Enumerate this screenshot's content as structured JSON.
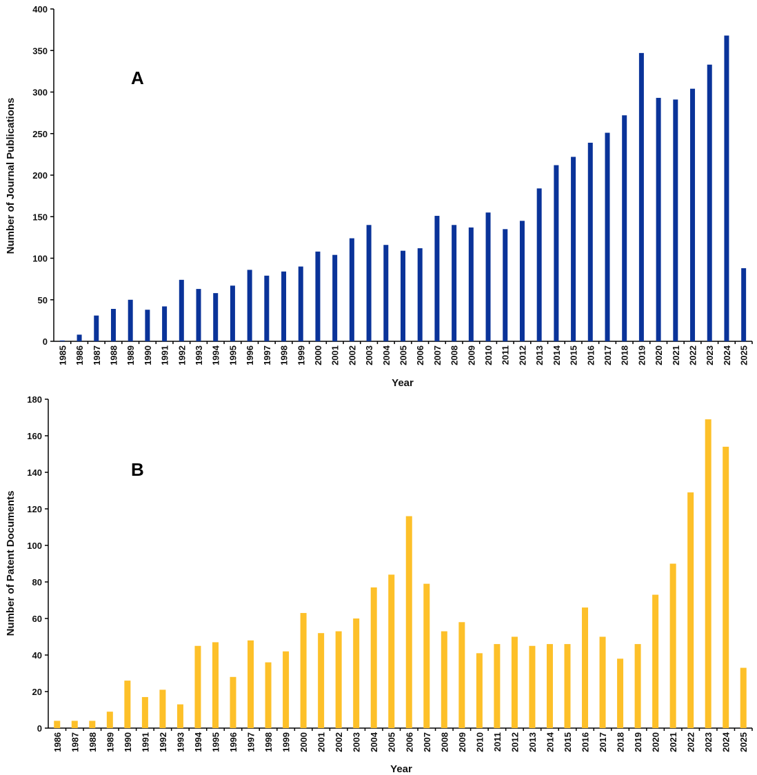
{
  "chart_data": [
    {
      "type": "bar",
      "panel_label": "A",
      "xlabel": "Year",
      "ylabel": "Number of Journal Publications",
      "ylim": [
        0,
        400
      ],
      "yticks": [
        0,
        50,
        100,
        150,
        200,
        250,
        300,
        350,
        400
      ],
      "grid": false,
      "color": "#0A3399",
      "categories": [
        "1985",
        "1986",
        "1987",
        "1988",
        "1989",
        "1990",
        "1991",
        "1992",
        "1993",
        "1994",
        "1995",
        "1996",
        "1997",
        "1998",
        "1999",
        "2000",
        "2001",
        "2002",
        "2003",
        "2004",
        "2005",
        "2006",
        "2007",
        "2008",
        "2009",
        "2010",
        "2011",
        "2012",
        "2013",
        "2014",
        "2015",
        "2016",
        "2017",
        "2018",
        "2019",
        "2020",
        "2021",
        "2022",
        "2023",
        "2024",
        "2025"
      ],
      "values": [
        1,
        8,
        31,
        39,
        50,
        38,
        42,
        74,
        63,
        58,
        67,
        86,
        79,
        84,
        90,
        108,
        104,
        124,
        140,
        116,
        109,
        112,
        151,
        140,
        137,
        155,
        135,
        145,
        184,
        212,
        222,
        239,
        251,
        272,
        347,
        293,
        291,
        304,
        333,
        368,
        88
      ]
    },
    {
      "type": "bar",
      "panel_label": "B",
      "xlabel": "Year",
      "ylabel": "Number of Patent Documents",
      "ylim": [
        0,
        180
      ],
      "yticks": [
        0,
        20,
        40,
        60,
        80,
        100,
        120,
        140,
        160,
        180
      ],
      "grid": false,
      "color": "#FDC029",
      "categories": [
        "1986",
        "1987",
        "1988",
        "1989",
        "1990",
        "1991",
        "1992",
        "1993",
        "1994",
        "1995",
        "1996",
        "1997",
        "1998",
        "1999",
        "2000",
        "2001",
        "2002",
        "2003",
        "2004",
        "2005",
        "2006",
        "2007",
        "2008",
        "2009",
        "2010",
        "2011",
        "2012",
        "2013",
        "2014",
        "2015",
        "2016",
        "2017",
        "2018",
        "2019",
        "2020",
        "2021",
        "2022",
        "2023",
        "2024",
        "2025"
      ],
      "values": [
        4,
        4,
        4,
        9,
        26,
        17,
        21,
        13,
        45,
        47,
        28,
        48,
        36,
        42,
        63,
        52,
        53,
        60,
        77,
        84,
        116,
        79,
        53,
        58,
        41,
        46,
        50,
        45,
        46,
        46,
        66,
        50,
        38,
        46,
        73,
        90,
        129,
        169,
        154,
        33
      ]
    }
  ]
}
